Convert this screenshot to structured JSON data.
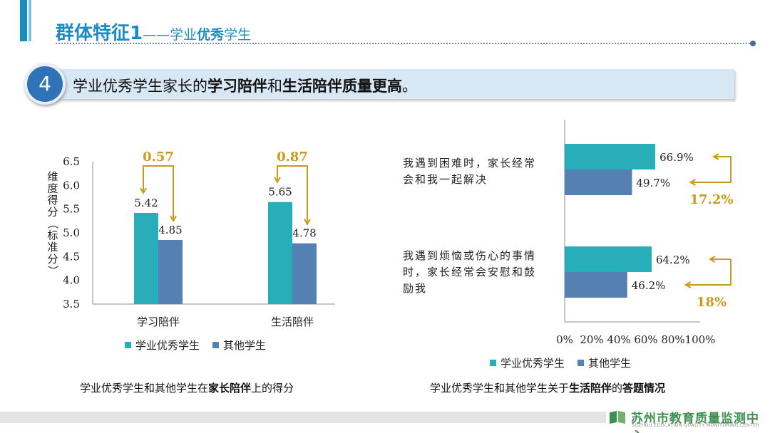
{
  "header": {
    "title_main": "群体特征1",
    "title_dash": "——",
    "title_sub_a": "学业",
    "title_sub_b": "优秀",
    "title_sub_c": "学生"
  },
  "banner": {
    "number": "4",
    "text_a": "学业优秀学生家长的",
    "text_b": "学习陪伴",
    "text_c": "和",
    "text_d": "生活陪伴质量更高",
    "text_e": "。"
  },
  "colors": {
    "excellent": "#27aeb8",
    "others": "#5580b2",
    "accent": "#c89a1e",
    "title": "#1b8cc1"
  },
  "legend": {
    "excellent": "学业优秀学生",
    "others": "其他学生"
  },
  "captions": {
    "left_a": "学业优秀学生和其他学生在",
    "left_b": "家长陪伴",
    "left_c": "上的得分",
    "right_a": "学业优秀学生和其他学生关于",
    "right_b": "生活陪伴",
    "right_c": "的",
    "right_d": "答题情况"
  },
  "chart_data": [
    {
      "type": "bar",
      "categories": [
        "学习陪伴",
        "生活陪伴"
      ],
      "series": [
        {
          "name": "学业优秀学生",
          "values": [
            5.42,
            5.65
          ]
        },
        {
          "name": "其他学生",
          "values": [
            4.85,
            4.78
          ]
        }
      ],
      "differences": [
        "0.57",
        "0.87"
      ],
      "ylabel": "维度得分（标准分）",
      "ylim": [
        3.5,
        6.5
      ],
      "yticks": [
        "3.5",
        "4.0",
        "4.5",
        "5.0",
        "5.5",
        "6.0",
        "6.5"
      ]
    },
    {
      "type": "bar",
      "orientation": "horizontal",
      "categories": [
        "我遇到困难时，家长经常会和我一起解决",
        "我遇到烦恼或伤心的事情时，家长经常会安慰和鼓励我"
      ],
      "category_lines": [
        [
          "我遇到困难时，家长经常",
          "会和我一起解决"
        ],
        [
          "我遇到烦恼或伤心的事情",
          "时，家长经常会安慰和鼓",
          "励我"
        ]
      ],
      "series": [
        {
          "name": "学业优秀学生",
          "values": [
            66.9,
            64.2
          ],
          "labels": [
            "66.9%",
            "64.2%"
          ]
        },
        {
          "name": "其他学生",
          "values": [
            49.7,
            46.2
          ],
          "labels": [
            "49.7%",
            "46.2%"
          ]
        }
      ],
      "differences": [
        "17.2%",
        "18%"
      ],
      "xlim": [
        0,
        100
      ],
      "xticks": [
        "0%",
        "20%",
        "40%",
        "60%",
        "80%",
        "100%"
      ]
    }
  ],
  "footer": {
    "org_name": "苏州市教育质量监测中心",
    "org_name_en": "SUZHOU EDUCATION QUALITY MONITORING CENTER"
  }
}
